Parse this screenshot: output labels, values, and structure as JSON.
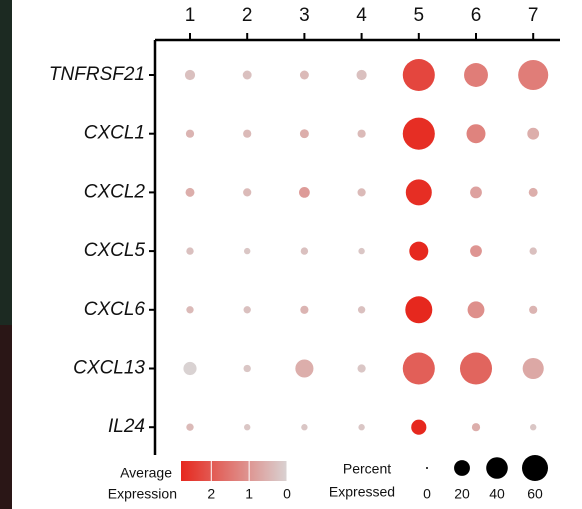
{
  "chart_data": {
    "type": "dot",
    "categories": [
      "1",
      "2",
      "3",
      "4",
      "5",
      "6",
      "7"
    ],
    "series": [
      {
        "name": "TNFRSF21",
        "values": [
          0.3,
          0.3,
          0.4,
          0.3,
          2.3,
          1.4,
          1.4
        ],
        "pct": [
          7,
          5,
          5,
          7,
          94,
          50,
          82
        ]
      },
      {
        "name": "CXCL1",
        "values": [
          0.5,
          0.4,
          0.6,
          0.4,
          2.7,
          1.3,
          0.6
        ],
        "pct": [
          4,
          4,
          5,
          4,
          94,
          30,
          10
        ]
      },
      {
        "name": "CXCL2",
        "values": [
          0.6,
          0.4,
          0.9,
          0.4,
          2.7,
          0.8,
          0.6
        ],
        "pct": [
          5,
          4,
          8,
          4,
          60,
          10,
          5
        ]
      },
      {
        "name": "CXCL5",
        "values": [
          0.3,
          0.2,
          0.3,
          0.2,
          2.8,
          1.0,
          0.3
        ],
        "pct": [
          3,
          2,
          3,
          2,
          30,
          10,
          3
        ]
      },
      {
        "name": "CXCL6",
        "values": [
          0.4,
          0.3,
          0.5,
          0.3,
          2.8,
          1.1,
          0.5
        ],
        "pct": [
          3,
          3,
          4,
          3,
          65,
          23,
          4
        ]
      },
      {
        "name": "CXCL13",
        "values": [
          0.0,
          0.2,
          0.6,
          0.2,
          1.9,
          1.8,
          0.7
        ],
        "pct": [
          13,
          3,
          27,
          4,
          94,
          94,
          38
        ]
      },
      {
        "name": "IL24",
        "values": [
          0.4,
          0.2,
          0.2,
          0.2,
          2.8,
          0.6,
          0.2
        ],
        "pct": [
          3,
          2,
          2,
          2,
          18,
          4,
          2
        ]
      }
    ],
    "color_title": [
      "Average",
      "Expression"
    ],
    "colorlim": [
      0,
      2.8
    ],
    "color_ticks": [
      2,
      1,
      0
    ],
    "color_low": "#d9d2d2",
    "color_high": "#e6281e",
    "size_title": [
      "Percent",
      "Expressed"
    ],
    "size_ticks": [
      0,
      20,
      40,
      60
    ],
    "dot_color": "#000000"
  }
}
